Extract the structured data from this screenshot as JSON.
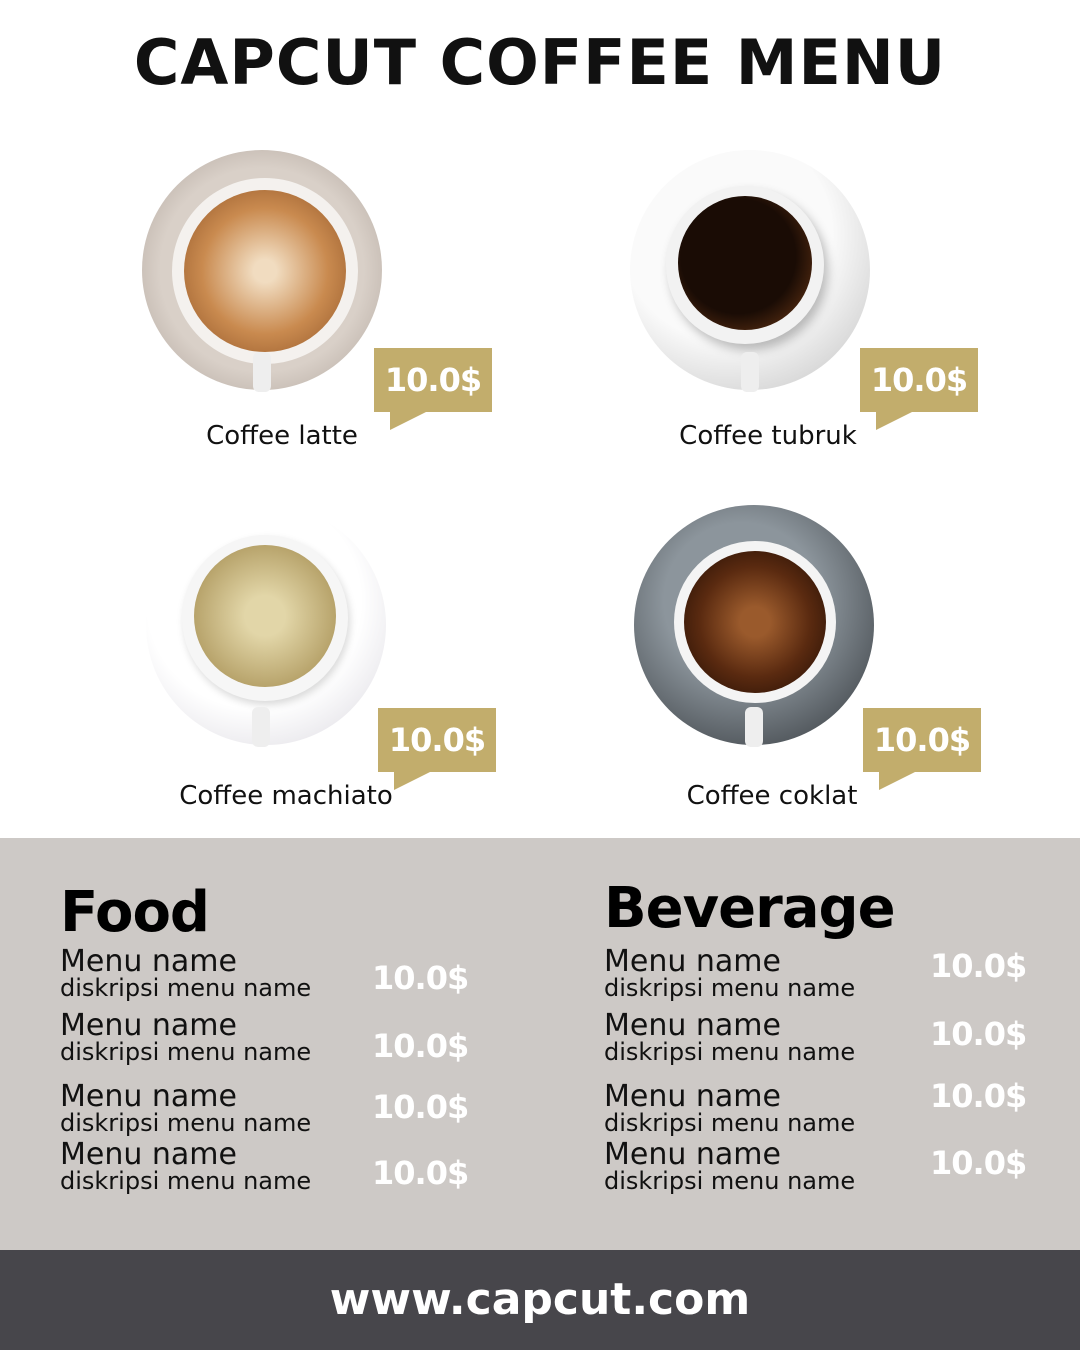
{
  "title": "CAPCUT COFFEE MENU",
  "colors": {
    "accent": "#c2ad6c",
    "band": "#cdc9c6",
    "footer": "#47464b"
  },
  "coffees": [
    {
      "name": "Coffee latte",
      "price": "10.0$"
    },
    {
      "name": "Coffee tubruk",
      "price": "10.0$"
    },
    {
      "name": "Coffee machiato",
      "price": "10.0$"
    },
    {
      "name": "Coffee coklat",
      "price": "10.0$"
    }
  ],
  "food": {
    "heading": "Food",
    "items": [
      {
        "name": "Menu name",
        "desc": "diskripsi menu name",
        "price": "10.0$"
      },
      {
        "name": "Menu name",
        "desc": "diskripsi menu name",
        "price": "10.0$"
      },
      {
        "name": "Menu name",
        "desc": "diskripsi menu name",
        "price": "10.0$"
      },
      {
        "name": "Menu name",
        "desc": "diskripsi menu name",
        "price": "10.0$"
      }
    ]
  },
  "beverage": {
    "heading": "Beverage",
    "items": [
      {
        "name": "Menu name",
        "desc": "diskripsi menu name",
        "price": "10.0$"
      },
      {
        "name": "Menu name",
        "desc": "diskripsi menu name",
        "price": "10.0$"
      },
      {
        "name": "Menu name",
        "desc": "diskripsi menu name",
        "price": "10.0$"
      },
      {
        "name": "Menu name",
        "desc": "diskripsi menu name",
        "price": "10.0$"
      }
    ]
  },
  "footer": "www.capcut.com"
}
